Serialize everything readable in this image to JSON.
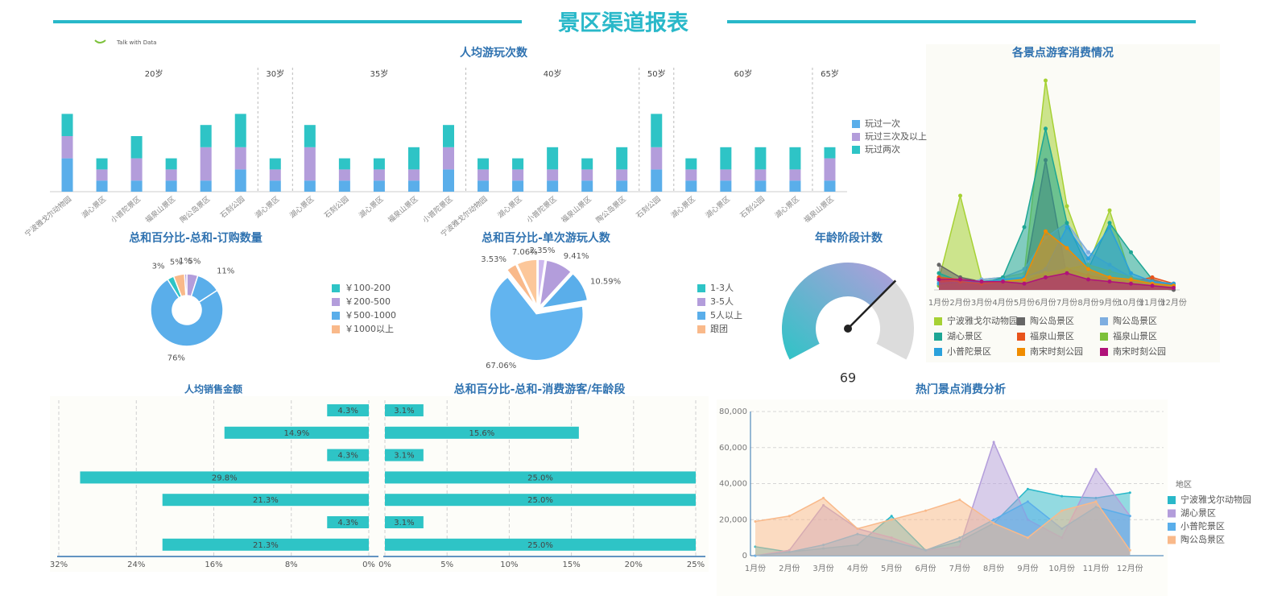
{
  "title": "景区渠道报表",
  "logo_text": "Talk with Data",
  "chart_data": [
    {
      "type": "bar",
      "title": "人均游玩次数",
      "stacked": true,
      "groups": [
        {
          "name": "20岁",
          "size": 6
        },
        {
          "name": "30岁",
          "size": 1
        },
        {
          "name": "35岁",
          "size": 5
        },
        {
          "name": "40岁",
          "size": 5
        },
        {
          "name": "50岁",
          "size": 1
        },
        {
          "name": "60岁",
          "size": 4
        },
        {
          "name": "65岁",
          "size": 1
        }
      ],
      "categories": [
        "宁波雅戈尔动物园",
        "湖心景区",
        "小普陀景区",
        "福泉山景区",
        "陶公岛景区",
        "石刻公园",
        "湖心景区",
        "湖心景区",
        "石刻公园",
        "湖心景区",
        "福泉山景区",
        "小普陀景区",
        "宁波雅戈尔动物园",
        "湖心景区",
        "小普陀景区",
        "福泉山景区",
        "陶公岛景区",
        "石刻公园",
        "湖心景区",
        "湖心景区",
        "石刻公园",
        "湖心景区",
        "福泉山景区"
      ],
      "series": [
        {
          "name": "玩过一次",
          "color": "#5aaeea",
          "values": [
            3,
            1,
            1,
            1,
            1,
            2,
            1,
            1,
            1,
            1,
            1,
            2,
            1,
            1,
            1,
            1,
            1,
            2,
            1,
            1,
            1,
            1,
            1
          ]
        },
        {
          "name": "玩过三次及以上",
          "color": "#b39ddb",
          "values": [
            2,
            1,
            2,
            1,
            3,
            2,
            1,
            3,
            1,
            1,
            1,
            2,
            1,
            1,
            1,
            1,
            1,
            2,
            1,
            1,
            1,
            1,
            2
          ]
        },
        {
          "name": "玩过两次",
          "color": "#2ec4c6",
          "values": [
            2,
            1,
            2,
            1,
            2,
            3,
            1,
            2,
            1,
            1,
            2,
            2,
            1,
            1,
            2,
            1,
            2,
            3,
            1,
            2,
            2,
            2,
            1
          ]
        }
      ],
      "ylim": [
        0,
        10
      ]
    },
    {
      "type": "donut",
      "title": "总和百分比-总和-订购数量",
      "values": [
        5,
        11,
        76,
        3,
        5,
        1
      ],
      "value_labels": [
        "5%",
        "11%",
        "76%",
        "3%",
        "5%",
        "1%"
      ],
      "colors": [
        "#b39ddb",
        "#5aaeea",
        "#5aaeea",
        "#2ec4c6",
        "#f9b98a",
        "#b39ddb"
      ],
      "legend": [
        {
          "name": "￥100-200",
          "color": "#2ec4c6"
        },
        {
          "name": "￥200-500",
          "color": "#b39ddb"
        },
        {
          "name": "￥500-1000",
          "color": "#5aaeea"
        },
        {
          "name": "￥1000以上",
          "color": "#f9b98a"
        }
      ]
    },
    {
      "type": "pie",
      "title": "总和百分比-单次游玩人数",
      "exploded": true,
      "values": [
        2.35,
        9.41,
        10.59,
        67.06,
        3.53,
        7.06
      ],
      "value_labels": [
        "2.35%",
        "9.41%",
        "10.59%",
        "67.06%",
        "3.53%",
        "7.06%"
      ],
      "colors": [
        "#cdb8ee",
        "#b39ddb",
        "#5aaeea",
        "#62b4ef",
        "#f9b98a",
        "#fcc79a"
      ],
      "legend": [
        {
          "name": "1-3人",
          "color": "#2ec4c6"
        },
        {
          "name": "3-5人",
          "color": "#b39ddb"
        },
        {
          "name": "5人以上",
          "color": "#5aaeea"
        },
        {
          "name": "跟团",
          "color": "#f9b98a"
        }
      ]
    },
    {
      "type": "gauge",
      "title": "年龄阶段计数",
      "value": 69,
      "range": [
        0,
        100
      ]
    },
    {
      "type": "area",
      "title": "各景点游客消费情况",
      "categories": [
        "1月份",
        "2月份",
        "3月份",
        "4月份",
        "5月份",
        "6月份",
        "7月份",
        "8月份",
        "9月份",
        "10月份",
        "11月份",
        "12月份"
      ],
      "series": [
        {
          "name": "宁波雅戈尔动物园",
          "color": "#a6d134",
          "values": [
            5,
            45,
            5,
            6,
            8,
            100,
            40,
            12,
            38,
            6,
            3,
            2
          ]
        },
        {
          "name": "陶公岛景区",
          "color": "#666666",
          "values": [
            12,
            6,
            4,
            3,
            5,
            62,
            6,
            3,
            2,
            1,
            1,
            0
          ]
        },
        {
          "name": "陶公岛景区",
          "color": "#7eaee0",
          "values": [
            4,
            3,
            5,
            6,
            10,
            25,
            32,
            18,
            12,
            6,
            4,
            3
          ]
        },
        {
          "name": "湖心景区",
          "color": "#1ea694",
          "values": [
            8,
            4,
            3,
            6,
            30,
            77,
            32,
            10,
            32,
            18,
            5,
            2
          ]
        },
        {
          "name": "福泉山景区",
          "color": "#e8531c",
          "values": [
            6,
            5,
            4,
            3,
            4,
            8,
            10,
            7,
            5,
            4,
            6,
            3
          ]
        },
        {
          "name": "福泉山景区",
          "color": "#7cc13a",
          "values": [
            2,
            3,
            4,
            5,
            6,
            8,
            10,
            12,
            9,
            6,
            3,
            2
          ]
        },
        {
          "name": "小普陀景区",
          "color": "#2aa1dc",
          "values": [
            3,
            4,
            4,
            5,
            6,
            10,
            30,
            15,
            30,
            8,
            4,
            3
          ]
        },
        {
          "name": "南宋时刻公园",
          "color": "#f08c00",
          "values": [
            5,
            4,
            3,
            4,
            5,
            28,
            20,
            10,
            6,
            5,
            3,
            2
          ]
        },
        {
          "name": "南宋时刻公园",
          "color": "#b0127a",
          "values": [
            5,
            5,
            4,
            4,
            3,
            6,
            8,
            5,
            4,
            3,
            2,
            1
          ]
        }
      ],
      "ylim": [
        0,
        100
      ]
    },
    {
      "type": "hbar",
      "title": "人均销售金额",
      "color": "#2ec4c6",
      "grid": true,
      "values": [
        4.3,
        14.9,
        4.3,
        29.8,
        21.3,
        4.3,
        21.3
      ],
      "value_labels": [
        "4.3%",
        "14.9%",
        "4.3%",
        "29.8%",
        "21.3%",
        "4.3%",
        "21.3%"
      ],
      "xlim": [
        32,
        0
      ],
      "xticks": [
        {
          "value": 32,
          "label": "32%"
        },
        {
          "value": 24,
          "label": "24%"
        },
        {
          "value": 16,
          "label": "16%"
        },
        {
          "value": 8,
          "label": "8%"
        },
        {
          "value": 0,
          "label": "0%"
        }
      ]
    },
    {
      "type": "hbar",
      "title": "总和百分比-总和-消费游客/年龄段",
      "color": "#2ec4c6",
      "grid": true,
      "values": [
        3.1,
        15.6,
        3.1,
        25,
        25,
        3.1,
        25
      ],
      "value_labels": [
        "3.1%",
        "15.6%",
        "3.1%",
        "25.0%",
        "25.0%",
        "3.1%",
        "25.0%"
      ],
      "xlim": [
        0,
        25
      ],
      "xticks": [
        {
          "value": 0,
          "label": "0%"
        },
        {
          "value": 5,
          "label": "5%"
        },
        {
          "value": 10,
          "label": "10%"
        },
        {
          "value": 15,
          "label": "15%"
        },
        {
          "value": 20,
          "label": "20%"
        },
        {
          "value": 25,
          "label": "25%"
        }
      ]
    },
    {
      "type": "area",
      "title": "热门景点消费分析",
      "legend_title": "地区",
      "grid": true,
      "categories": [
        "1月份",
        "2月份",
        "3月份",
        "4月份",
        "5月份",
        "6月份",
        "7月份",
        "8月份",
        "9月份",
        "10月份",
        "11月份",
        "12月份"
      ],
      "series": [
        {
          "name": "宁波雅戈尔动物园",
          "color": "#29b8c9",
          "values": [
            5000,
            2000,
            4000,
            6000,
            22000,
            3000,
            8000,
            18000,
            37000,
            33000,
            32000,
            35000
          ]
        },
        {
          "name": "湖心景区",
          "color": "#b39ddb",
          "values": [
            0,
            3000,
            28000,
            15000,
            10000,
            3000,
            5000,
            63000,
            20000,
            10000,
            48000,
            22000
          ]
        },
        {
          "name": "小普陀景区",
          "color": "#5aaeea",
          "values": [
            0,
            2000,
            6000,
            12000,
            8000,
            3000,
            10000,
            20000,
            30000,
            15000,
            27000,
            22000
          ]
        },
        {
          "name": "陶公岛景区",
          "color": "#f9b98a",
          "values": [
            19000,
            22000,
            32000,
            15000,
            20000,
            25000,
            31000,
            18000,
            10000,
            25000,
            30000,
            3000
          ]
        }
      ],
      "ylim": [
        0,
        80000
      ],
      "yticks": [
        0,
        {
          "value": 20000,
          "label": "20,000"
        },
        {
          "value": 40000,
          "label": "40,000"
        },
        {
          "value": 60000,
          "label": "60,000"
        },
        {
          "value": 80000,
          "label": "80,000"
        }
      ]
    }
  ]
}
